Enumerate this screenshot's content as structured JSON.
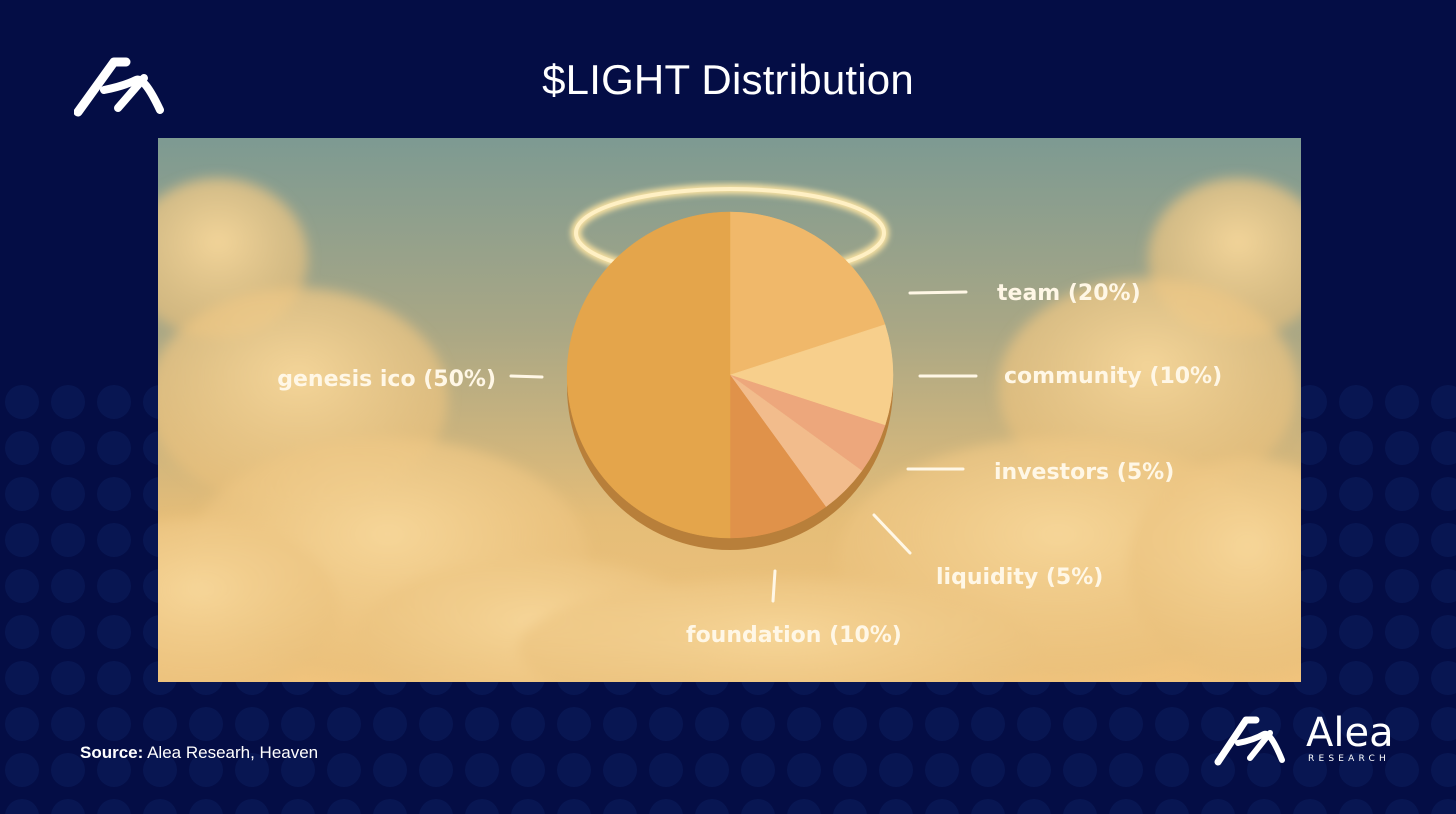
{
  "title": "$LIGHT Distribution",
  "chart_data": {
    "type": "pie",
    "title": "$LIGHT Distribution",
    "slices": [
      {
        "name": "team",
        "value": 20,
        "label": "team (20%)",
        "color": "#f0b86a"
      },
      {
        "name": "community",
        "value": 10,
        "label": "community (10%)",
        "color": "#f7cf8c"
      },
      {
        "name": "investors",
        "value": 5,
        "label": "investors (5%)",
        "color": "#eda77c"
      },
      {
        "name": "liquidity",
        "value": 5,
        "label": "liquidity (5%)",
        "color": "#f2bc8c"
      },
      {
        "name": "foundation",
        "value": 10,
        "label": "foundation (10%)",
        "color": "#e0924a"
      },
      {
        "name": "genesis ico",
        "value": 50,
        "label": "genesis ico (50%)",
        "color": "#e4a54b"
      }
    ]
  },
  "source": {
    "prefix": "Source:",
    "text": "Alea Researh, Heaven"
  },
  "brand": {
    "name": "Alea",
    "sub": "RESEARCH"
  },
  "colors": {
    "background": "#040d45",
    "accent": "#e4a54b",
    "text": "#ffffff"
  }
}
